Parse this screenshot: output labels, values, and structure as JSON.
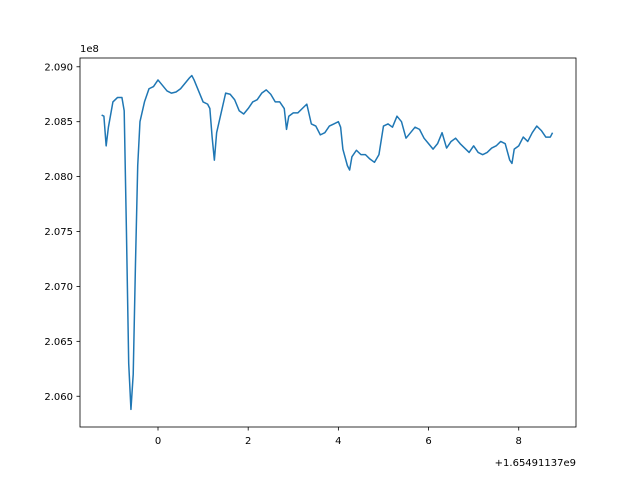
{
  "chart_data": {
    "type": "line",
    "y_offset_label": "1e8",
    "x_offset_label": "+1.65491137e9",
    "x": [
      -1.25,
      -1.2,
      -1.15,
      -1.1,
      -1.0,
      -0.9,
      -0.8,
      -0.75,
      -0.7,
      -0.65,
      -0.6,
      -0.55,
      -0.5,
      -0.45,
      -0.4,
      -0.3,
      -0.2,
      -0.1,
      0,
      0.1,
      0.2,
      0.3,
      0.4,
      0.5,
      0.6,
      0.7,
      0.75,
      0.8,
      0.9,
      1.0,
      1.1,
      1.15,
      1.2,
      1.25,
      1.3,
      1.4,
      1.5,
      1.6,
      1.7,
      1.8,
      1.9,
      2.0,
      2.1,
      2.2,
      2.3,
      2.4,
      2.5,
      2.6,
      2.7,
      2.8,
      2.85,
      2.9,
      3.0,
      3.1,
      3.2,
      3.3,
      3.4,
      3.5,
      3.6,
      3.7,
      3.8,
      3.9,
      4.0,
      4.05,
      4.1,
      4.2,
      4.25,
      4.3,
      4.4,
      4.5,
      4.6,
      4.7,
      4.8,
      4.9,
      5.0,
      5.1,
      5.2,
      5.3,
      5.4,
      5.5,
      5.6,
      5.7,
      5.8,
      5.9,
      6.0,
      6.1,
      6.2,
      6.3,
      6.4,
      6.5,
      6.6,
      6.7,
      6.8,
      6.9,
      7.0,
      7.1,
      7.2,
      7.3,
      7.4,
      7.5,
      7.6,
      7.7,
      7.8,
      7.85,
      7.9,
      8.0,
      8.1,
      8.2,
      8.3,
      8.4,
      8.5,
      8.6,
      8.7,
      8.75
    ],
    "series": [
      {
        "color": "#1f77b4",
        "values": [
          2.0856,
          2.0855,
          2.0828,
          2.0845,
          2.0868,
          2.0872,
          2.0872,
          2.086,
          2.075,
          2.063,
          2.0588,
          2.062,
          2.072,
          2.081,
          2.085,
          2.0868,
          2.088,
          2.0882,
          2.0888,
          2.0883,
          2.0878,
          2.0876,
          2.0877,
          2.088,
          2.0885,
          2.089,
          2.0892,
          2.0888,
          2.0878,
          2.0868,
          2.0866,
          2.0862,
          2.0836,
          2.0815,
          2.084,
          2.0858,
          2.0876,
          2.0875,
          2.087,
          2.086,
          2.0857,
          2.0862,
          2.0868,
          2.087,
          2.0876,
          2.0879,
          2.0875,
          2.0868,
          2.0868,
          2.0862,
          2.0843,
          2.0855,
          2.0858,
          2.0858,
          2.0862,
          2.0866,
          2.0848,
          2.0846,
          2.0838,
          2.084,
          2.0846,
          2.0848,
          2.085,
          2.0845,
          2.0825,
          2.081,
          2.0806,
          2.0818,
          2.0824,
          2.082,
          2.082,
          2.0816,
          2.0813,
          2.082,
          2.0846,
          2.0848,
          2.0845,
          2.0855,
          2.085,
          2.0835,
          2.084,
          2.0845,
          2.0843,
          2.0835,
          2.083,
          2.0825,
          2.083,
          2.084,
          2.0826,
          2.0832,
          2.0835,
          2.083,
          2.0826,
          2.0822,
          2.0828,
          2.0822,
          2.082,
          2.0822,
          2.0826,
          2.0828,
          2.0832,
          2.083,
          2.0815,
          2.0812,
          2.0825,
          2.0828,
          2.0836,
          2.0832,
          2.084,
          2.0846,
          2.0842,
          2.0836,
          2.0836,
          2.084
        ]
      }
    ],
    "xlim": [
      -1.73,
      9.27
    ],
    "xticks": [
      0,
      2,
      4,
      6,
      8
    ],
    "ylim": [
      2.0572,
      2.0908
    ],
    "yticks": [
      {
        "value": 2.06,
        "label": "2.060"
      },
      {
        "value": 2.065,
        "label": "2.065"
      },
      {
        "value": 2.07,
        "label": "2.070"
      },
      {
        "value": 2.075,
        "label": "2.075"
      },
      {
        "value": 2.08,
        "label": "2.080"
      },
      {
        "value": 2.085,
        "label": "2.085"
      },
      {
        "value": 2.09,
        "label": "2.090"
      }
    ],
    "grid": false
  }
}
